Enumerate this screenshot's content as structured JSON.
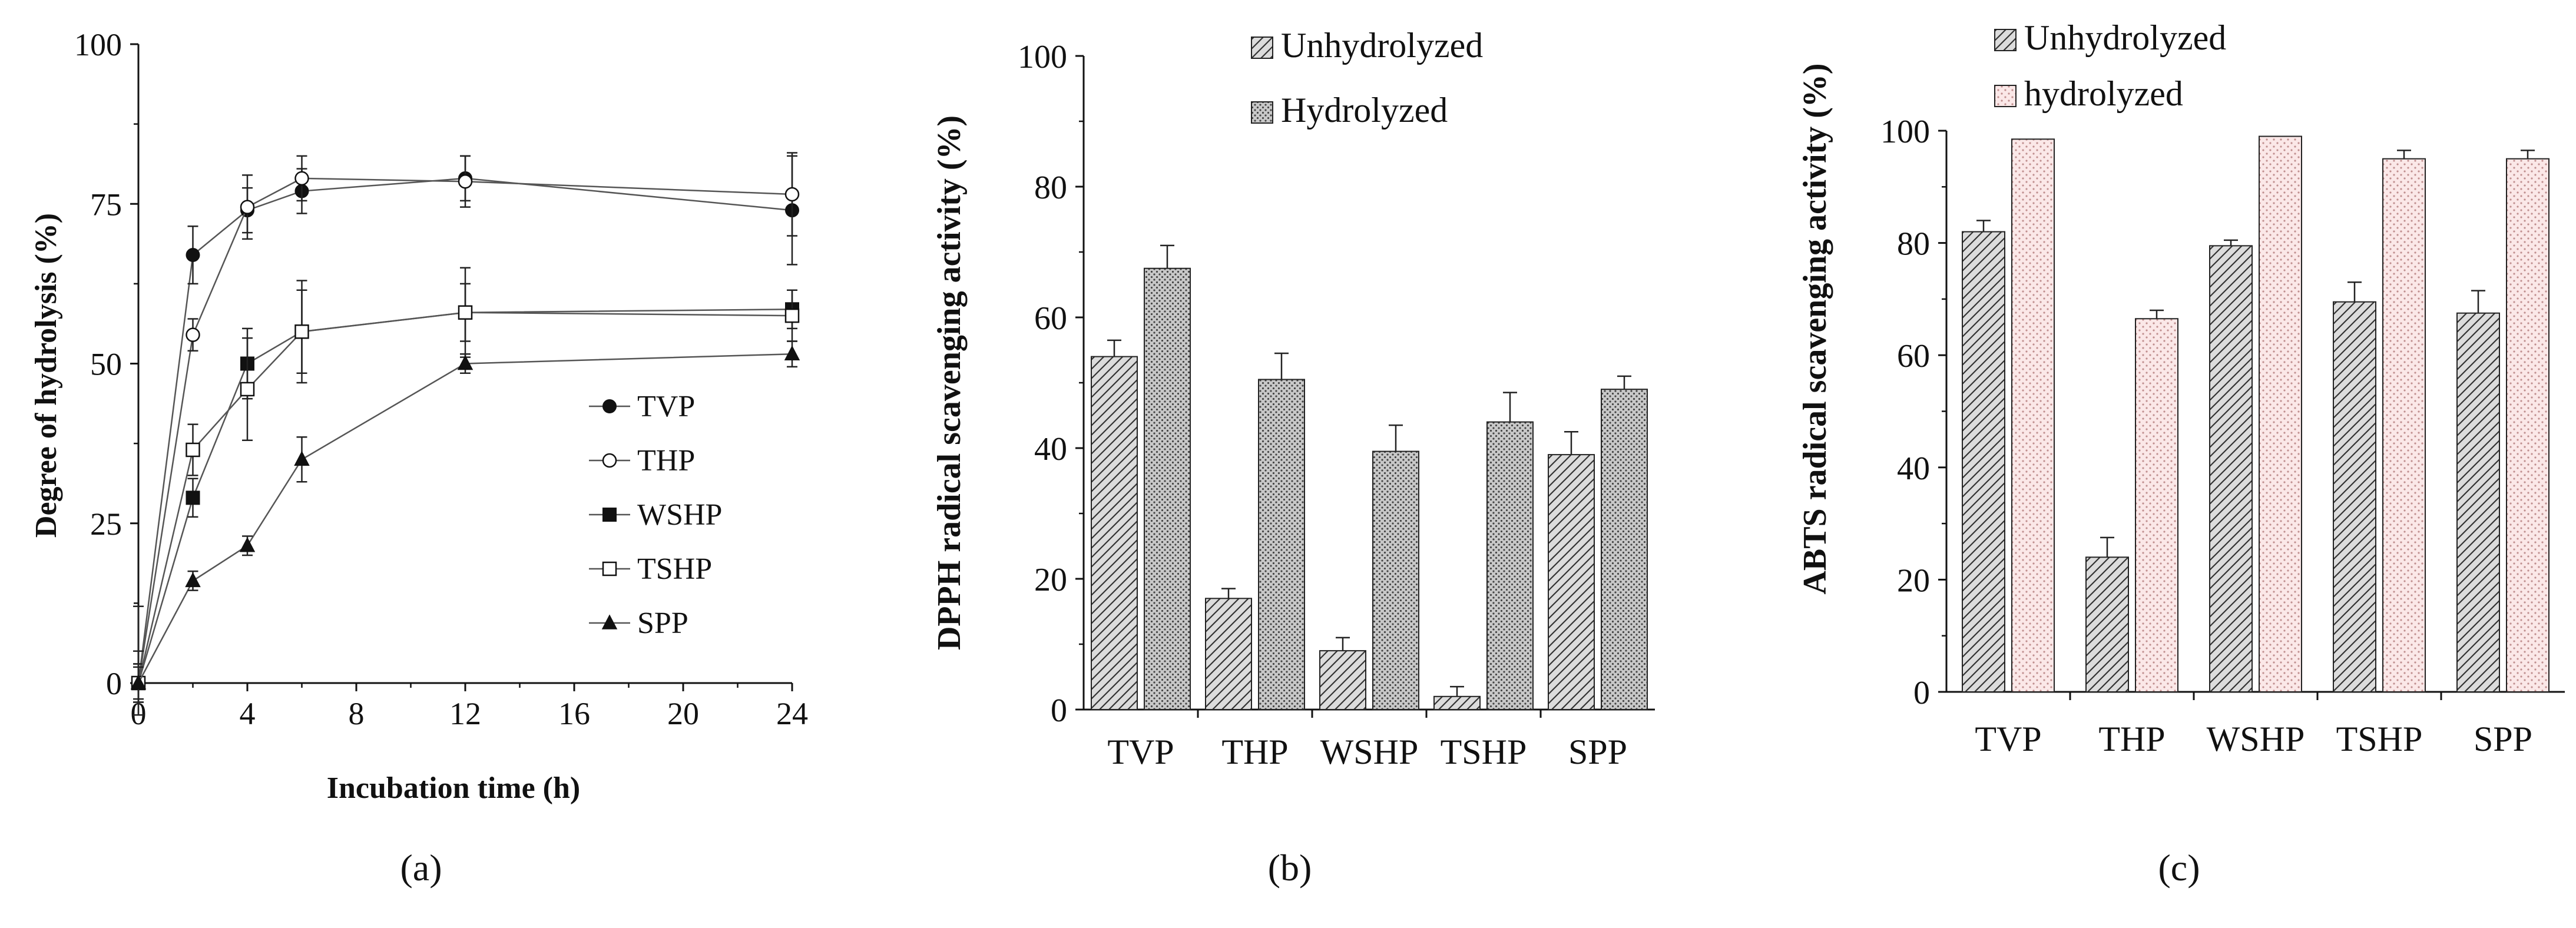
{
  "chart_data": [
    {
      "type": "line",
      "panel_label": "(a)",
      "title": "",
      "xlabel": "Incubation time (h)",
      "ylabel": "Degree of hydrolysis (%)",
      "xlim": [
        0,
        24
      ],
      "ylim": [
        0,
        100
      ],
      "x_ticks": [
        0,
        4,
        8,
        12,
        16,
        20,
        24
      ],
      "y_ticks": [
        0,
        25,
        50,
        75,
        100
      ],
      "x": [
        0,
        2,
        4,
        6,
        12,
        24
      ],
      "series": [
        {
          "name": "TVP",
          "marker": "circle-filled",
          "values": [
            0,
            67,
            74,
            77,
            79,
            74
          ],
          "errors": [
            3,
            4.5,
            3.5,
            3.5,
            3.5,
            8.5
          ]
        },
        {
          "name": "THP",
          "marker": "circle-open",
          "values": [
            0,
            54.5,
            74.5,
            79,
            78.5,
            76.5
          ],
          "errors": [
            3,
            2.5,
            5,
            3.5,
            4,
            6.5
          ]
        },
        {
          "name": "WSHP",
          "marker": "square-filled",
          "values": [
            0,
            29,
            50,
            55,
            58,
            58.5
          ],
          "errors": [
            5,
            3,
            5.5,
            6.5,
            7,
            3
          ]
        },
        {
          "name": "TSHP",
          "marker": "square-open",
          "values": [
            0,
            36.5,
            46,
            55,
            58,
            57.5
          ],
          "errors": [
            12,
            4,
            8,
            8,
            4.5,
            4
          ]
        },
        {
          "name": "SPP",
          "marker": "triangle-filled",
          "values": [
            0,
            16,
            21.5,
            35,
            50,
            51.5
          ],
          "errors": [
            2.5,
            1.5,
            1.5,
            3.5,
            1.5,
            2
          ]
        }
      ]
    },
    {
      "type": "bar",
      "panel_label": "(b)",
      "title": "",
      "xlabel": "",
      "ylabel": "DPPH radical scavenging activity (%)",
      "ylim": [
        0,
        100
      ],
      "y_ticks": [
        0,
        20,
        40,
        60,
        80,
        100
      ],
      "categories": [
        "TVP",
        "THP",
        "WSHP",
        "TSHP",
        "SPP"
      ],
      "series": [
        {
          "name": "Unhydrolyzed",
          "pattern": "hatch",
          "values": [
            54,
            17,
            9,
            2,
            39
          ],
          "errors": [
            2.5,
            1.5,
            2,
            1.5,
            3.5
          ]
        },
        {
          "name": "Hydrolyzed",
          "pattern": "dots",
          "values": [
            67.5,
            50.5,
            39.5,
            44,
            49
          ],
          "errors": [
            3.5,
            4,
            4,
            4.5,
            2
          ]
        }
      ]
    },
    {
      "type": "bar",
      "panel_label": "(c)",
      "title": "",
      "xlabel": "",
      "ylabel": "ABTS radical scavenging activity (%)",
      "ylim": [
        0,
        100
      ],
      "y_ticks": [
        0,
        20,
        40,
        60,
        80,
        100
      ],
      "categories": [
        "TVP",
        "THP",
        "WSHP",
        "TSHP",
        "SPP"
      ],
      "series": [
        {
          "name": "Unhydrolyzed",
          "pattern": "hatch",
          "values": [
            82,
            24,
            79.5,
            69.5,
            67.5
          ],
          "errors": [
            2,
            3.5,
            1,
            3.5,
            4
          ]
        },
        {
          "name": "hydrolyzed",
          "pattern": "dots-pink",
          "values": [
            98.5,
            66.5,
            99,
            95,
            95
          ],
          "errors": [
            0,
            1.5,
            0,
            1.5,
            1.5
          ]
        }
      ]
    }
  ],
  "colors": {
    "axis": "#111111",
    "line": "#555555",
    "hatch_fill": "#dcdcdc",
    "dots_fill": "#cfcfcf",
    "pink_fill": "#fbe8e8",
    "pink_dot": "#c99a9a"
  }
}
